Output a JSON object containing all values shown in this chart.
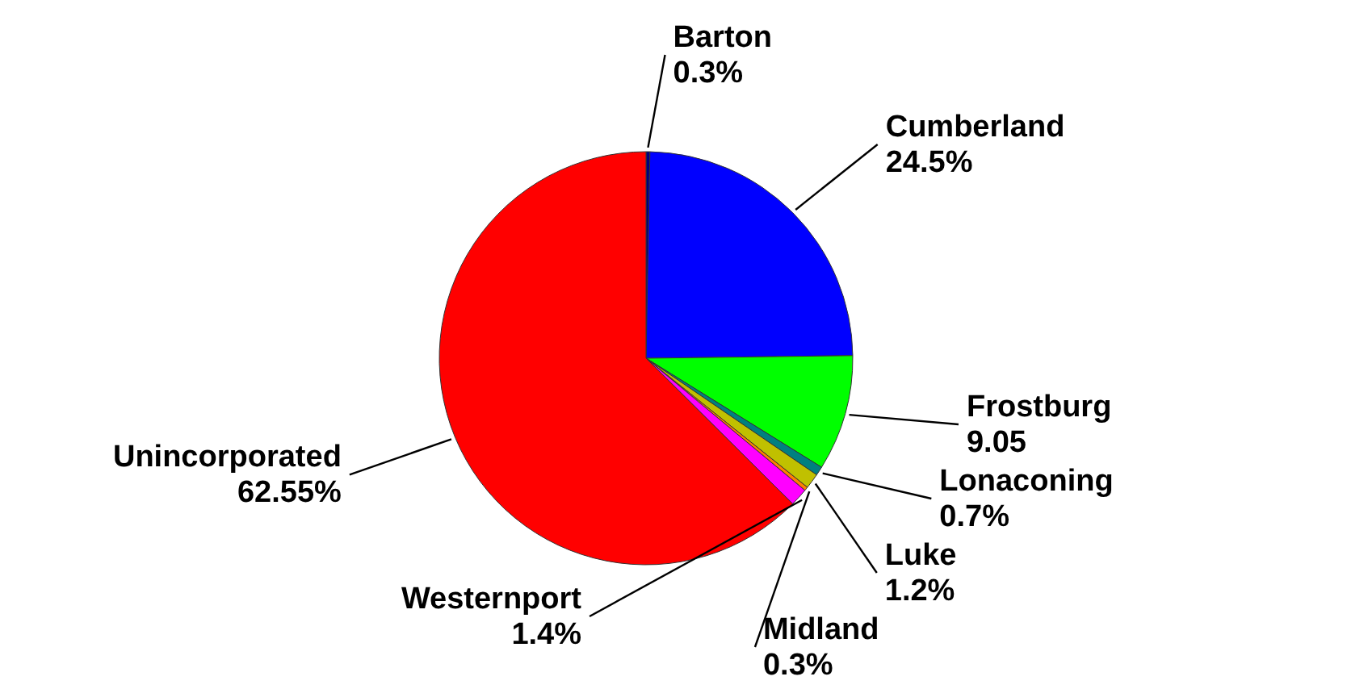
{
  "chart_data": {
    "type": "pie",
    "categories": [
      "Barton",
      "Cumberland",
      "Frostburg",
      "Lonaconing",
      "Luke",
      "Midland",
      "Westernport",
      "Unincorporated"
    ],
    "values": [
      0.3,
      24.5,
      9.05,
      0.7,
      1.2,
      0.3,
      1.4,
      62.55
    ],
    "value_labels": [
      "0.3%",
      "24.5%",
      "9.05",
      "0.7%",
      "1.2%",
      "0.3%",
      "1.4%",
      "62.55%"
    ],
    "colors": [
      "#000080",
      "#0000ff",
      "#00ff00",
      "#008080",
      "#c0c000",
      "#ff8000",
      "#ff00ff",
      "#ff0000"
    ]
  }
}
